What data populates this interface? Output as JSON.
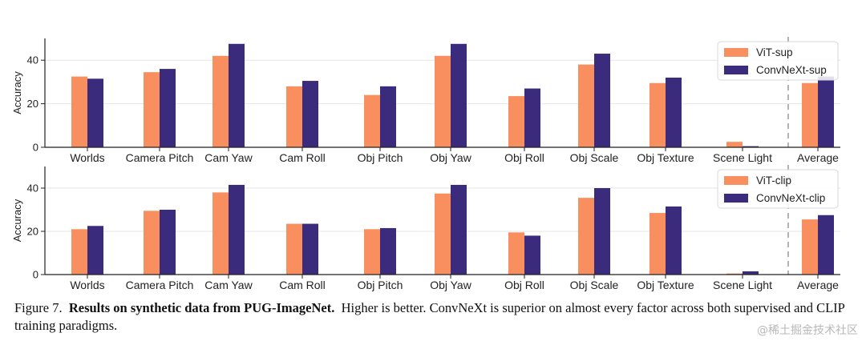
{
  "colors": {
    "series_a": "#f98e5e",
    "series_b": "#3b2b7d",
    "axis": "#222222",
    "grid": "#e6e6e6",
    "divider": "#9a9a9a"
  },
  "chart_data": [
    {
      "type": "bar",
      "ylabel": "Accuracy",
      "ylim": [
        0,
        50
      ],
      "yticks": [
        0,
        20,
        40
      ],
      "categories": [
        "Worlds",
        "Camera Pitch",
        "Cam Yaw",
        "Cam Roll",
        "Obj Pitch",
        "Obj Yaw",
        "Obj Roll",
        "Obj Scale",
        "Obj Texture",
        "Scene Light",
        "Average"
      ],
      "series": [
        {
          "name": "ViT-sup",
          "values": [
            32.5,
            34.5,
            42,
            28,
            24,
            42,
            23.5,
            38,
            29.5,
            2.5,
            29.5
          ]
        },
        {
          "name": "ConvNeXt-sup",
          "values": [
            31.5,
            36,
            47.5,
            30.5,
            28,
            47.5,
            27,
            43,
            32,
            0.5,
            32.5
          ]
        }
      ],
      "legend_position": "top-right",
      "grid": true
    },
    {
      "type": "bar",
      "ylabel": "Accuracy",
      "ylim": [
        0,
        50
      ],
      "yticks": [
        0,
        20,
        40
      ],
      "categories": [
        "Worlds",
        "Camera Pitch",
        "Cam Yaw",
        "Cam Roll",
        "Obj Pitch",
        "Obj Yaw",
        "Obj Roll",
        "Obj Scale",
        "Obj Texture",
        "Scene Light",
        "Average"
      ],
      "series": [
        {
          "name": "ViT-clip",
          "values": [
            21,
            29.5,
            38,
            23.5,
            21,
            37.5,
            19.5,
            35.5,
            28.5,
            0.5,
            25.5
          ]
        },
        {
          "name": "ConvNeXt-clip",
          "values": [
            22.5,
            30,
            41.5,
            23.5,
            21.5,
            41.5,
            18,
            40,
            31.5,
            1.5,
            27.5
          ]
        }
      ],
      "legend_position": "top-right",
      "grid": true
    }
  ],
  "caption": {
    "figure_number": "Figure 7.",
    "bold_text": "Results on synthetic data from PUG-ImageNet.",
    "text": "Higher is better. ConvNeXt is superior on almost every factor across both supervised and CLIP training paradigms."
  },
  "watermark": "@稀土掘金技术社区"
}
